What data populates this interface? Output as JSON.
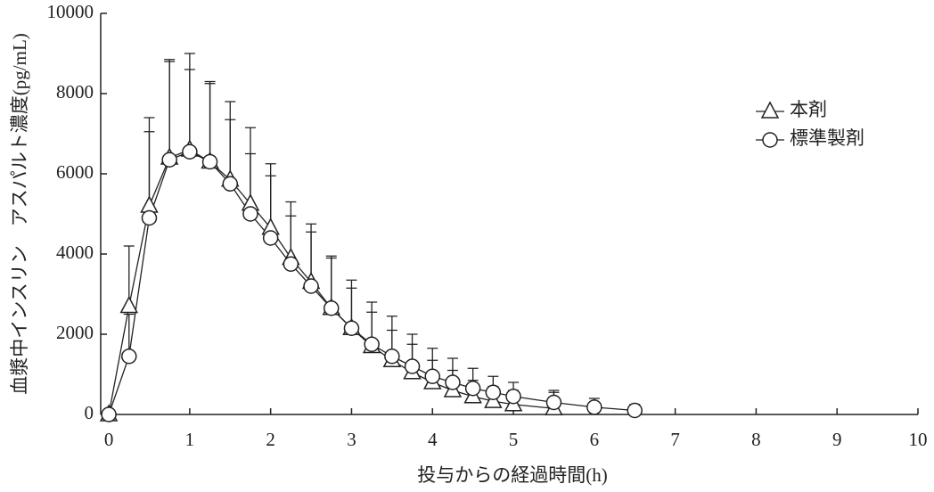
{
  "chart_data": {
    "type": "line",
    "y_label": "血漿中インスリン　アスパルト濃度(pg/mL)",
    "x_label": "投与からの経過時間(h)",
    "xlim": [
      -0.1,
      10
    ],
    "xticks": [
      0,
      1,
      2,
      3,
      4,
      5,
      6,
      7,
      8,
      9,
      10
    ],
    "ylim": [
      0,
      10000
    ],
    "yticks": [
      0,
      2000,
      4000,
      6000,
      8000,
      10000
    ],
    "grid": false,
    "legend": "upper right",
    "series": [
      {
        "name": "本剤",
        "marker": "triangle",
        "color": "#222222",
        "x": [
          0,
          0.25,
          0.5,
          0.75,
          1,
          1.25,
          1.5,
          1.75,
          2,
          2.25,
          2.5,
          2.75,
          3,
          3.25,
          3.5,
          3.75,
          4,
          4.25,
          4.5,
          4.75,
          5,
          5.5
        ],
        "values": [
          0,
          2700,
          5200,
          6400,
          6600,
          6300,
          5850,
          5250,
          4650,
          3900,
          3300,
          2650,
          2150,
          1700,
          1350,
          1050,
          800,
          600,
          450,
          330,
          250,
          150
        ],
        "errors": [
          0,
          1500,
          2200,
          2450,
          2400,
          2000,
          1950,
          1900,
          1600,
          1400,
          1450,
          1300,
          1200,
          1100,
          1100,
          950,
          850,
          800,
          700,
          620,
          550,
          450
        ]
      },
      {
        "name": "標準製剤",
        "marker": "circle",
        "color": "#222222",
        "x": [
          0,
          0.25,
          0.5,
          0.75,
          1,
          1.25,
          1.5,
          1.75,
          2,
          2.25,
          2.5,
          2.75,
          3,
          3.25,
          3.5,
          3.75,
          4,
          4.25,
          4.5,
          4.75,
          5,
          5.5,
          6,
          6.5
        ],
        "values": [
          0,
          1450,
          4900,
          6350,
          6550,
          6300,
          5750,
          5000,
          4400,
          3750,
          3200,
          2650,
          2150,
          1750,
          1450,
          1200,
          950,
          800,
          650,
          550,
          450,
          300,
          180,
          100
        ],
        "errors": [
          0,
          1050,
          2150,
          2450,
          2050,
          1950,
          1600,
          1500,
          1550,
          1200,
          1350,
          1250,
          1000,
          800,
          650,
          550,
          400,
          300,
          200,
          150,
          150,
          250,
          220,
          150
        ]
      }
    ]
  }
}
